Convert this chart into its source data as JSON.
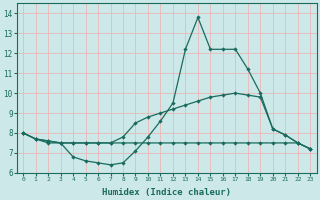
{
  "xlabel": "Humidex (Indice chaleur)",
  "bg_color": "#cce8e8",
  "line_color": "#1a6b5e",
  "grid_color": "#e8b8b8",
  "xlim": [
    -0.5,
    23.5
  ],
  "ylim": [
    6,
    14.5
  ],
  "yticks": [
    6,
    7,
    8,
    9,
    10,
    11,
    12,
    13,
    14
  ],
  "xticks": [
    0,
    1,
    2,
    3,
    4,
    5,
    6,
    7,
    8,
    9,
    10,
    11,
    12,
    13,
    14,
    15,
    16,
    17,
    18,
    19,
    20,
    21,
    22,
    23
  ],
  "line1_x": [
    0,
    1,
    2,
    3,
    4,
    5,
    6,
    7,
    8,
    9,
    10,
    11,
    12,
    13,
    14,
    15,
    16,
    17,
    18,
    19,
    20,
    21,
    22,
    23
  ],
  "line1_y": [
    8.0,
    7.7,
    7.5,
    7.5,
    6.8,
    6.6,
    6.5,
    6.4,
    6.5,
    7.1,
    7.8,
    8.6,
    9.5,
    12.2,
    13.8,
    12.2,
    12.2,
    12.2,
    11.2,
    10.0,
    8.2,
    7.9,
    7.5,
    7.2
  ],
  "line2_x": [
    0,
    1,
    2,
    3,
    4,
    5,
    6,
    7,
    8,
    9,
    10,
    11,
    12,
    13,
    14,
    15,
    16,
    17,
    18,
    19,
    20,
    21,
    22,
    23
  ],
  "line2_y": [
    8.0,
    7.7,
    7.6,
    7.5,
    7.5,
    7.5,
    7.5,
    7.5,
    7.8,
    8.5,
    8.8,
    9.0,
    9.2,
    9.4,
    9.6,
    9.8,
    9.9,
    10.0,
    9.9,
    9.8,
    8.2,
    7.9,
    7.5,
    7.2
  ],
  "line3_x": [
    0,
    1,
    2,
    3,
    4,
    5,
    6,
    7,
    8,
    9,
    10,
    11,
    12,
    13,
    14,
    15,
    16,
    17,
    18,
    19,
    20,
    21,
    22,
    23
  ],
  "line3_y": [
    8.0,
    7.7,
    7.6,
    7.5,
    7.5,
    7.5,
    7.5,
    7.5,
    7.5,
    7.5,
    7.5,
    7.5,
    7.5,
    7.5,
    7.5,
    7.5,
    7.5,
    7.5,
    7.5,
    7.5,
    7.5,
    7.5,
    7.5,
    7.2
  ]
}
